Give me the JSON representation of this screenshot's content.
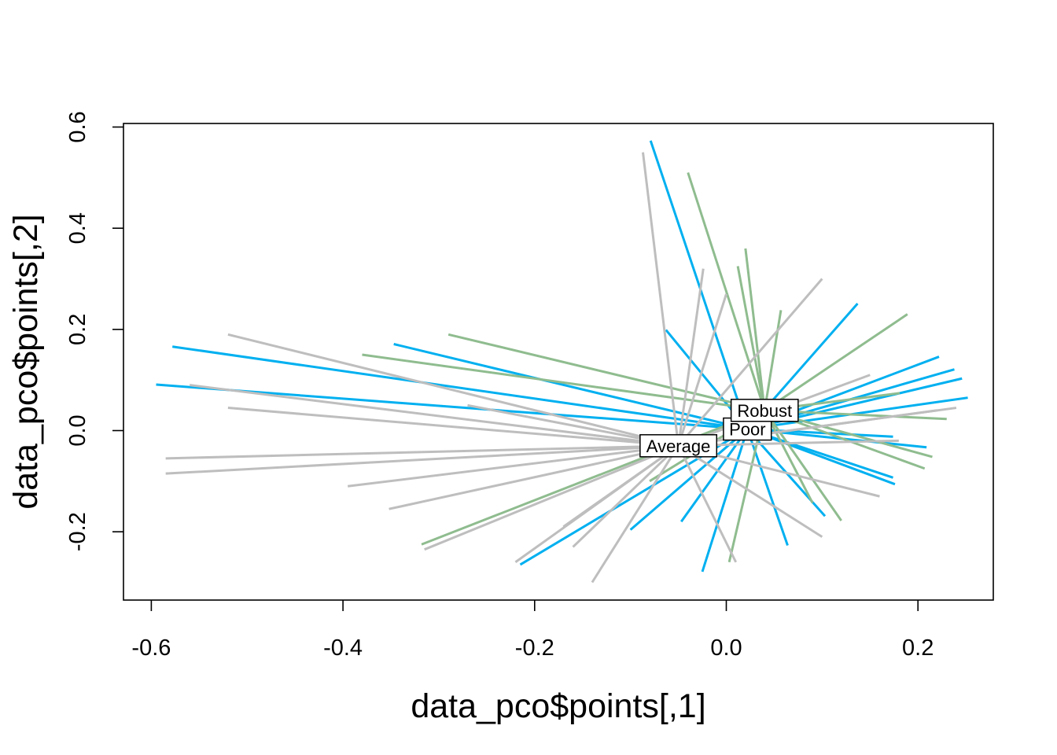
{
  "chart_data": {
    "type": "ordination-spider",
    "title": "",
    "xlabel": "data_pco$points[,1]",
    "ylabel": "data_pco$points[,2]",
    "xlim": [
      -0.63,
      0.28
    ],
    "ylim": [
      -0.34,
      0.6
    ],
    "xticks": [
      -0.6,
      -0.4,
      -0.2,
      0.0,
      0.2
    ],
    "xtick_labels": [
      "-0.6",
      "-0.4",
      "-0.2",
      "0.0",
      "0.2"
    ],
    "yticks": [
      -0.2,
      0.0,
      0.2,
      0.4,
      0.6
    ],
    "ytick_labels": [
      "-0.2",
      "0.0",
      "0.2",
      "0.4",
      "0.6"
    ],
    "grid": false,
    "legend": "none",
    "groups": [
      {
        "label": "Poor",
        "color": "#00b0f0",
        "centroid": [
          0.022,
          0.003
        ],
        "points": [
          [
            -0.578,
            0.166
          ],
          [
            -0.595,
            0.091
          ],
          [
            -0.347,
            0.171
          ],
          [
            -0.079,
            0.573
          ],
          [
            -0.063,
            0.199
          ],
          [
            0.137,
            0.251
          ],
          [
            0.222,
            0.146
          ],
          [
            0.238,
            0.121
          ],
          [
            0.246,
            0.103
          ],
          [
            0.252,
            0.065
          ],
          [
            0.174,
            -0.012
          ],
          [
            0.209,
            -0.033
          ],
          [
            0.174,
            -0.093
          ],
          [
            0.176,
            -0.106
          ],
          [
            0.103,
            -0.169
          ],
          [
            0.064,
            -0.227
          ],
          [
            -0.025,
            -0.279
          ],
          [
            -0.047,
            -0.18
          ],
          [
            -0.1,
            -0.196
          ],
          [
            -0.215,
            -0.265
          ],
          [
            0.02,
            0.05
          ],
          [
            0.06,
            0.045
          ]
        ]
      },
      {
        "label": "Robust",
        "color": "#8fbc8f",
        "centroid": [
          0.04,
          0.04
        ],
        "points": [
          [
            -0.29,
            0.19
          ],
          [
            -0.38,
            0.15
          ],
          [
            -0.04,
            0.51
          ],
          [
            0.02,
            0.36
          ],
          [
            0.012,
            0.325
          ],
          [
            0.057,
            0.238
          ],
          [
            0.189,
            0.23
          ],
          [
            0.181,
            0.074
          ],
          [
            0.23,
            0.023
          ],
          [
            0.215,
            -0.052
          ],
          [
            0.207,
            -0.075
          ],
          [
            0.12,
            -0.178
          ],
          [
            0.09,
            -0.143
          ],
          [
            0.003,
            -0.26
          ],
          [
            -0.318,
            -0.225
          ],
          [
            -0.08,
            -0.1
          ]
        ]
      },
      {
        "label": "Average",
        "color": "#bebebe",
        "centroid": [
          -0.05,
          -0.03
        ],
        "points": [
          [
            -0.52,
            0.19
          ],
          [
            -0.56,
            0.09
          ],
          [
            -0.52,
            0.045
          ],
          [
            -0.585,
            -0.055
          ],
          [
            -0.585,
            -0.085
          ],
          [
            -0.395,
            -0.11
          ],
          [
            -0.352,
            -0.155
          ],
          [
            -0.315,
            -0.235
          ],
          [
            -0.22,
            -0.26
          ],
          [
            -0.16,
            -0.23
          ],
          [
            -0.14,
            -0.3
          ],
          [
            -0.17,
            -0.19
          ],
          [
            -0.087,
            0.55
          ],
          [
            -0.024,
            0.32
          ],
          [
            0.0,
            0.27
          ],
          [
            0.1,
            0.3
          ],
          [
            0.15,
            0.11
          ],
          [
            0.22,
            0.04
          ],
          [
            0.24,
            0.045
          ],
          [
            0.16,
            -0.13
          ],
          [
            0.1,
            -0.21
          ],
          [
            0.01,
            -0.26
          ],
          [
            -0.27,
            0.05
          ],
          [
            0.18,
            -0.02
          ]
        ]
      }
    ]
  }
}
